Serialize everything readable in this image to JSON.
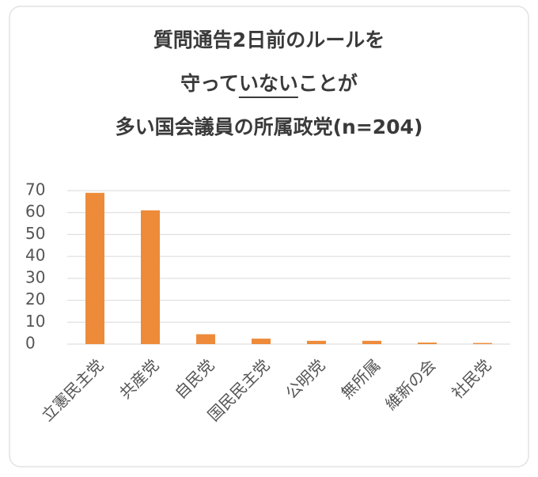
{
  "chart_data": {
    "type": "bar",
    "title": [
      "質問通告2日前のルールを",
      "守っていないことが",
      "多い国会議員の所属政党(n=204)"
    ],
    "categories": [
      "立憲民主党",
      "共産党",
      "自民党",
      "国民民主党",
      "公明党",
      "無所属",
      "維新の会",
      "社民党"
    ],
    "values": [
      69,
      61,
      4.5,
      2.5,
      1.5,
      1.5,
      0.7,
      0.5
    ],
    "color": "#ed8b3a",
    "ylim": [
      0,
      70
    ],
    "yticks": [
      0,
      10,
      20,
      30,
      40,
      50,
      60,
      70
    ],
    "grid": true
  }
}
